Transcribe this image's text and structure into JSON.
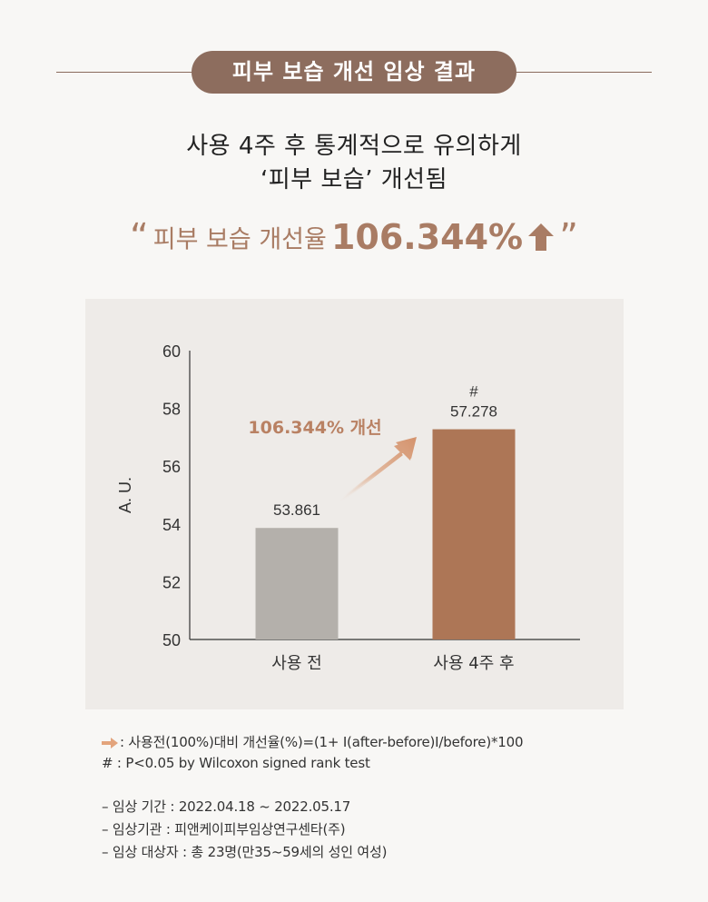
{
  "header": {
    "badge": "피부 보습 개선 임상 결과",
    "subtitle_line1": "사용 4주 후 통계적으로 유의하게",
    "subtitle_line2": "‘피부 보습’ 개선됨",
    "rate_open_quote": "“",
    "rate_label": "피부 보습 개선율",
    "rate_value": "106.344%",
    "rate_close_quote": "”"
  },
  "colors": {
    "accent": "#8d6d5e",
    "rate_text": "#a97c64",
    "bar_before": "#b4b0ab",
    "bar_after": "#ad7656",
    "panel_bg": "#eeebe8"
  },
  "chart_data": {
    "type": "bar",
    "categories": [
      "사용 전",
      "사용 4주 후"
    ],
    "values": [
      53.861,
      57.278
    ],
    "value_labels": [
      "53.861",
      "57.278"
    ],
    "significance_marks": [
      "",
      "#"
    ],
    "ylabel": "A. U.",
    "ylim": [
      50,
      60
    ],
    "yticks": [
      50,
      52,
      54,
      56,
      58,
      60
    ],
    "annotation": "106.344% 개선",
    "grid": false
  },
  "notes": {
    "formula": ": 사용전(100%)대비 개선율(%)=(1+ I(after-before)I/before)*100",
    "significance": "# : P<0.05 by Wilcoxon signed rank test",
    "period": "–  임상 기간 : 2022.04.18 ~ 2022.05.17",
    "institution": "–  임상기관 : 피앤케이피부임상연구센타(주)",
    "subjects": "–  임상 대상자 : 총 23명(만35~59세의 성인 여성)"
  }
}
